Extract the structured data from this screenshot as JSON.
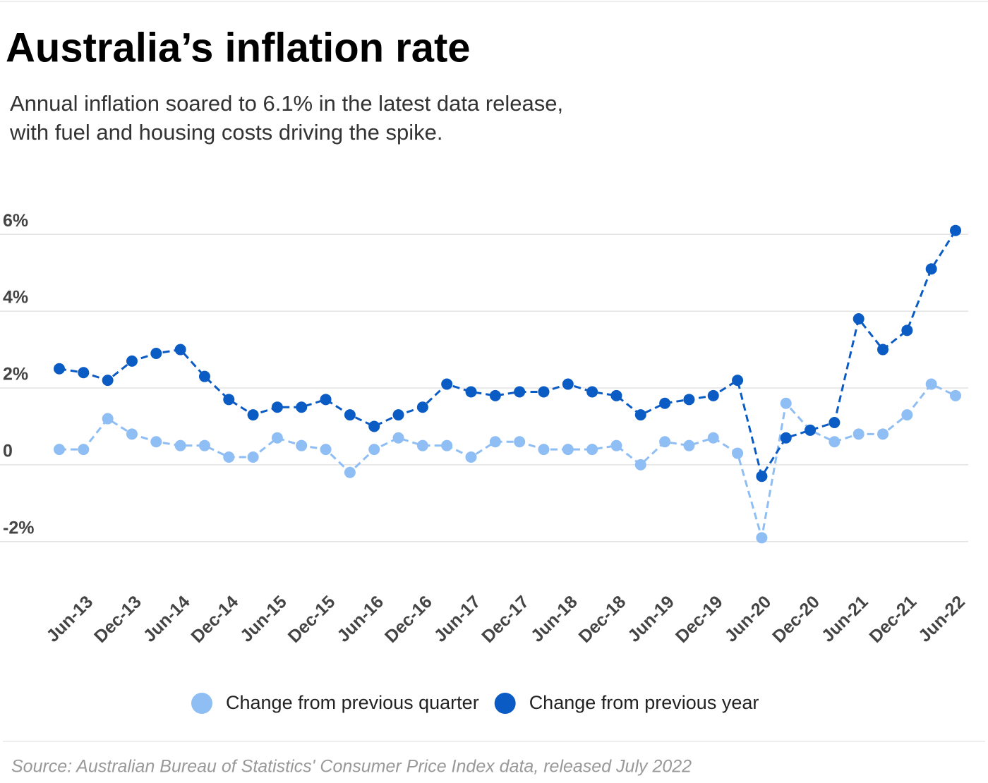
{
  "chart_data": {
    "type": "line",
    "title": "Australia’s inflation rate",
    "subtitle": [
      "Annual inflation soared to 6.1% in the latest data release,",
      "with fuel and housing costs driving the spike."
    ],
    "source": "Source: Australian Bureau of Statistics' Consumer Price Index data, released July 2022",
    "categories": [
      null,
      "Jun-13",
      null,
      "Dec-13",
      null,
      "Jun-14",
      null,
      "Dec-14",
      null,
      "Jun-15",
      null,
      "Dec-15",
      null,
      "Jun-16",
      null,
      "Dec-16",
      null,
      "Jun-17",
      null,
      "Dec-17",
      null,
      "Jun-18",
      null,
      "Dec-18",
      null,
      "Jun-19",
      null,
      "Dec-19",
      null,
      "Jun-20",
      null,
      "Dec-20",
      null,
      "Jun-21",
      null,
      "Dec-21",
      null,
      "Jun-22"
    ],
    "series": [
      {
        "name": "Change from previous quarter",
        "color": "#8fbef5",
        "values": [
          0.4,
          0.4,
          1.2,
          0.8,
          0.6,
          0.5,
          0.5,
          0.2,
          0.2,
          0.7,
          0.5,
          0.4,
          -0.2,
          0.4,
          0.7,
          0.5,
          0.5,
          0.2,
          0.6,
          0.6,
          0.4,
          0.4,
          0.4,
          0.5,
          0.0,
          0.6,
          0.5,
          0.7,
          0.3,
          -1.9,
          1.6,
          0.9,
          0.6,
          0.8,
          0.8,
          1.3,
          2.1,
          1.8
        ]
      },
      {
        "name": "Change from previous year",
        "color": "#0a5bc4",
        "values": [
          2.5,
          2.4,
          2.2,
          2.7,
          2.9,
          3.0,
          2.3,
          1.7,
          1.3,
          1.5,
          1.5,
          1.7,
          1.3,
          1.0,
          1.3,
          1.5,
          2.1,
          1.9,
          1.8,
          1.9,
          1.9,
          2.1,
          1.9,
          1.8,
          1.3,
          1.6,
          1.7,
          1.8,
          2.2,
          -0.3,
          0.7,
          0.9,
          1.1,
          3.8,
          3.0,
          3.5,
          5.1,
          6.1
        ]
      }
    ],
    "ylim": [
      -2.5,
      6.5
    ],
    "yticks": [
      {
        "value": -2,
        "label": "-2%"
      },
      0,
      {
        "value": 2,
        "label": "2%"
      },
      {
        "value": 4,
        "label": "4%"
      },
      {
        "value": 6,
        "label": "6%"
      }
    ],
    "grid": true
  }
}
